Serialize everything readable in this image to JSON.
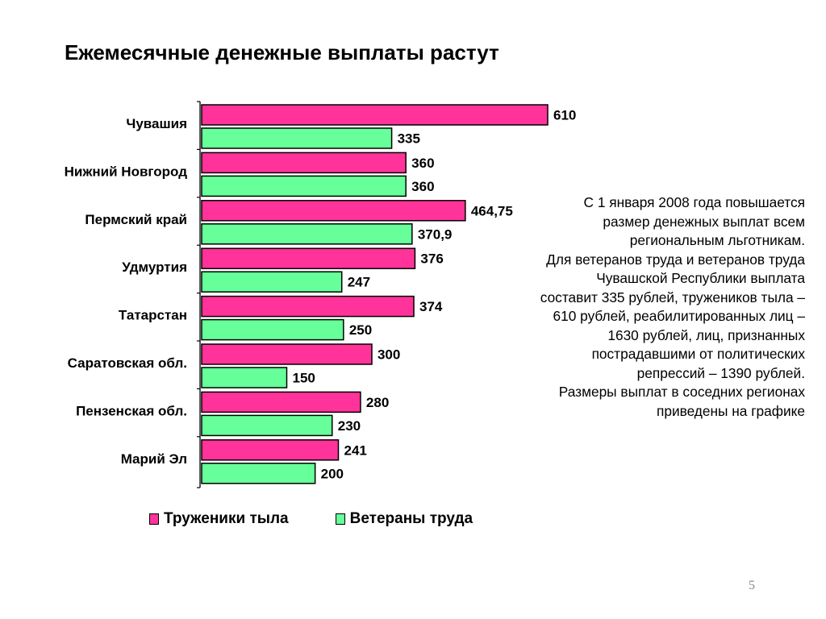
{
  "title": "Ежемесячные денежные выплаты растут",
  "chart_data": {
    "type": "bar",
    "orientation": "horizontal",
    "categories": [
      "Чувашия",
      "Нижний Новгород",
      "Пермский край",
      "Удмуртия",
      "Татарстан",
      "Саратовская обл.",
      "Пензенская обл.",
      "Марий Эл"
    ],
    "series": [
      {
        "name": "Труженики тыла",
        "color": "#ff3399",
        "values": [
          610,
          360,
          464.75,
          376,
          374,
          300,
          280,
          241
        ],
        "labels": [
          "610",
          "360",
          "464,75",
          "376",
          "374",
          "300",
          "280",
          "241"
        ]
      },
      {
        "name": "Ветераны труда",
        "color": "#66ff99",
        "values": [
          335,
          360,
          370.9,
          247,
          250,
          150,
          230,
          200
        ],
        "labels": [
          "335",
          "360",
          "370,9",
          "247",
          "250",
          "150",
          "230",
          "200"
        ]
      }
    ],
    "xlim": [
      0,
      700
    ],
    "grid": false,
    "legend_position": "bottom"
  },
  "side_text": [
    "С 1 января 2008 года повышается",
    "размер денежных выплат всем",
    "региональным льготникам.",
    "Для ветеранов труда и ветеранов труда",
    "Чувашской Республики выплата",
    "составит 335 рублей, тружеников тыла –",
    "610 рублей, реабилитированных лиц –",
    "1630 рублей, лиц, признанных",
    "пострадавшими от политических",
    "репрессий – 1390 рублей.",
    "Размеры выплат в соседних регионах",
    "приведены на графике"
  ],
  "page_number": "5"
}
